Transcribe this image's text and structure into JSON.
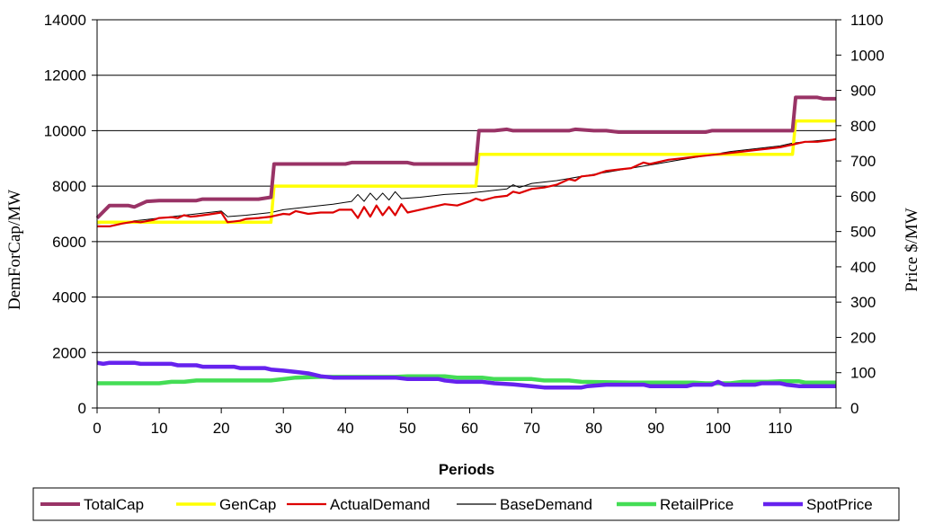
{
  "chart_data": {
    "type": "line",
    "title": "",
    "xlabel": "Periods",
    "ylabel": "DemForCap/MW",
    "y2label": "Price $/MW",
    "xlim": [
      0,
      119
    ],
    "ylim": [
      0,
      14000
    ],
    "y2lim": [
      0,
      1100
    ],
    "x_ticks": [
      0,
      10,
      20,
      30,
      40,
      50,
      60,
      70,
      80,
      90,
      100,
      110
    ],
    "y_ticks": [
      0,
      2000,
      4000,
      6000,
      8000,
      10000,
      12000,
      14000
    ],
    "y2_ticks": [
      0,
      100,
      200,
      300,
      400,
      500,
      600,
      700,
      800,
      900,
      1000,
      1100
    ],
    "grid": "horizontal",
    "legend": "bottom",
    "series": [
      {
        "name": "TotalCap",
        "axis": "left",
        "color": "#993366",
        "points": [
          [
            0,
            6850
          ],
          [
            2,
            7300
          ],
          [
            5,
            7300
          ],
          [
            6,
            7250
          ],
          [
            8,
            7450
          ],
          [
            10,
            7480
          ],
          [
            16,
            7480
          ],
          [
            17,
            7530
          ],
          [
            26,
            7530
          ],
          [
            28,
            7600
          ],
          [
            28.5,
            8800
          ],
          [
            40,
            8800
          ],
          [
            41,
            8850
          ],
          [
            50,
            8850
          ],
          [
            51,
            8800
          ],
          [
            61,
            8800
          ],
          [
            61.5,
            10000
          ],
          [
            64,
            10000
          ],
          [
            66,
            10050
          ],
          [
            67,
            10000
          ],
          [
            76,
            10000
          ],
          [
            77,
            10050
          ],
          [
            80,
            10000
          ],
          [
            82,
            10000
          ],
          [
            84,
            9950
          ],
          [
            98,
            9950
          ],
          [
            99,
            10000
          ],
          [
            112,
            10000
          ],
          [
            112.5,
            11200
          ],
          [
            116,
            11200
          ],
          [
            117,
            11150
          ],
          [
            119,
            11150
          ]
        ]
      },
      {
        "name": "GenCap",
        "axis": "left",
        "color": "#ffff00",
        "points": [
          [
            0,
            6700
          ],
          [
            28,
            6700
          ],
          [
            28.5,
            8000
          ],
          [
            61,
            8000
          ],
          [
            61.5,
            9150
          ],
          [
            112,
            9150
          ],
          [
            112.5,
            10350
          ],
          [
            119,
            10350
          ]
        ]
      },
      {
        "name": "ActualDemand",
        "axis": "left",
        "color": "#dd0000",
        "points": [
          [
            0,
            6550
          ],
          [
            2,
            6550
          ],
          [
            4,
            6650
          ],
          [
            6,
            6720
          ],
          [
            7,
            6700
          ],
          [
            9,
            6780
          ],
          [
            10,
            6850
          ],
          [
            12,
            6880
          ],
          [
            13,
            6850
          ],
          [
            14,
            6950
          ],
          [
            15,
            6900
          ],
          [
            16,
            6920
          ],
          [
            18,
            6980
          ],
          [
            20,
            7050
          ],
          [
            21,
            6700
          ],
          [
            23,
            6750
          ],
          [
            24,
            6820
          ],
          [
            26,
            6850
          ],
          [
            28,
            6900
          ],
          [
            30,
            7000
          ],
          [
            31,
            6980
          ],
          [
            32,
            7100
          ],
          [
            34,
            7000
          ],
          [
            36,
            7050
          ],
          [
            38,
            7050
          ],
          [
            39,
            7150
          ],
          [
            41,
            7150
          ],
          [
            42,
            6850
          ],
          [
            43,
            7250
          ],
          [
            44,
            6900
          ],
          [
            45,
            7300
          ],
          [
            46,
            6950
          ],
          [
            47,
            7250
          ],
          [
            48,
            6950
          ],
          [
            49,
            7350
          ],
          [
            50,
            7050
          ],
          [
            52,
            7150
          ],
          [
            54,
            7250
          ],
          [
            56,
            7350
          ],
          [
            58,
            7300
          ],
          [
            60,
            7450
          ],
          [
            61,
            7550
          ],
          [
            62,
            7480
          ],
          [
            64,
            7600
          ],
          [
            66,
            7650
          ],
          [
            67,
            7800
          ],
          [
            68,
            7750
          ],
          [
            70,
            7900
          ],
          [
            72,
            7950
          ],
          [
            74,
            8050
          ],
          [
            76,
            8250
          ],
          [
            77,
            8200
          ],
          [
            78,
            8350
          ],
          [
            80,
            8400
          ],
          [
            82,
            8550
          ],
          [
            84,
            8600
          ],
          [
            86,
            8650
          ],
          [
            88,
            8850
          ],
          [
            89,
            8800
          ],
          [
            90,
            8850
          ],
          [
            92,
            8950
          ],
          [
            94,
            9000
          ],
          [
            96,
            9050
          ],
          [
            98,
            9100
          ],
          [
            100,
            9150
          ],
          [
            102,
            9200
          ],
          [
            104,
            9250
          ],
          [
            106,
            9300
          ],
          [
            108,
            9350
          ],
          [
            110,
            9400
          ],
          [
            112,
            9500
          ],
          [
            113,
            9550
          ],
          [
            114,
            9600
          ],
          [
            116,
            9600
          ],
          [
            118,
            9650
          ],
          [
            119,
            9700
          ]
        ]
      },
      {
        "name": "BaseDemand",
        "axis": "left",
        "color": "#000000",
        "points": [
          [
            0,
            6650
          ],
          [
            4,
            6700
          ],
          [
            8,
            6800
          ],
          [
            12,
            6900
          ],
          [
            16,
            7000
          ],
          [
            20,
            7100
          ],
          [
            21,
            6900
          ],
          [
            24,
            6950
          ],
          [
            28,
            7050
          ],
          [
            30,
            7150
          ],
          [
            34,
            7250
          ],
          [
            38,
            7350
          ],
          [
            41,
            7450
          ],
          [
            42,
            7700
          ],
          [
            43,
            7450
          ],
          [
            44,
            7750
          ],
          [
            45,
            7500
          ],
          [
            46,
            7750
          ],
          [
            47,
            7500
          ],
          [
            48,
            7800
          ],
          [
            49,
            7550
          ],
          [
            52,
            7600
          ],
          [
            56,
            7700
          ],
          [
            60,
            7750
          ],
          [
            64,
            7850
          ],
          [
            66,
            7900
          ],
          [
            67,
            8050
          ],
          [
            68,
            7950
          ],
          [
            70,
            8100
          ],
          [
            74,
            8200
          ],
          [
            78,
            8350
          ],
          [
            82,
            8500
          ],
          [
            86,
            8650
          ],
          [
            90,
            8800
          ],
          [
            94,
            8950
          ],
          [
            98,
            9100
          ],
          [
            102,
            9250
          ],
          [
            106,
            9350
          ],
          [
            110,
            9450
          ],
          [
            112,
            9550
          ],
          [
            114,
            9600
          ],
          [
            119,
            9700
          ]
        ]
      },
      {
        "name": "RetailPrice",
        "axis": "right",
        "color": "#44dd55",
        "points": [
          [
            0,
            70
          ],
          [
            10,
            70
          ],
          [
            12,
            74
          ],
          [
            14,
            74
          ],
          [
            16,
            78
          ],
          [
            28,
            78
          ],
          [
            30,
            82
          ],
          [
            32,
            86
          ],
          [
            36,
            88
          ],
          [
            48,
            88
          ],
          [
            50,
            90
          ],
          [
            56,
            90
          ],
          [
            58,
            86
          ],
          [
            62,
            86
          ],
          [
            64,
            82
          ],
          [
            70,
            82
          ],
          [
            72,
            78
          ],
          [
            76,
            78
          ],
          [
            78,
            74
          ],
          [
            86,
            72
          ],
          [
            96,
            72
          ],
          [
            98,
            70
          ],
          [
            102,
            70
          ],
          [
            104,
            74
          ],
          [
            108,
            74
          ],
          [
            110,
            76
          ],
          [
            113,
            76
          ],
          [
            114,
            72
          ],
          [
            119,
            72
          ]
        ]
      },
      {
        "name": "SpotPrice",
        "axis": "right",
        "color": "#6622ee",
        "points": [
          [
            0,
            128
          ],
          [
            1,
            125
          ],
          [
            2,
            128
          ],
          [
            6,
            128
          ],
          [
            7,
            125
          ],
          [
            12,
            125
          ],
          [
            13,
            121
          ],
          [
            16,
            121
          ],
          [
            17,
            117
          ],
          [
            22,
            117
          ],
          [
            23,
            113
          ],
          [
            27,
            113
          ],
          [
            28,
            109
          ],
          [
            30,
            106
          ],
          [
            32,
            102
          ],
          [
            34,
            98
          ],
          [
            36,
            90
          ],
          [
            38,
            86
          ],
          [
            48,
            86
          ],
          [
            50,
            82
          ],
          [
            55,
            82
          ],
          [
            56,
            78
          ],
          [
            58,
            74
          ],
          [
            62,
            74
          ],
          [
            64,
            70
          ],
          [
            67,
            67
          ],
          [
            70,
            62
          ],
          [
            72,
            58
          ],
          [
            78,
            58
          ],
          [
            79,
            62
          ],
          [
            82,
            66
          ],
          [
            88,
            66
          ],
          [
            89,
            62
          ],
          [
            95,
            62
          ],
          [
            96,
            66
          ],
          [
            99,
            66
          ],
          [
            100,
            74
          ],
          [
            101,
            66
          ],
          [
            106,
            66
          ],
          [
            107,
            70
          ],
          [
            110,
            70
          ],
          [
            111,
            66
          ],
          [
            113,
            62
          ],
          [
            119,
            62
          ]
        ]
      }
    ]
  }
}
